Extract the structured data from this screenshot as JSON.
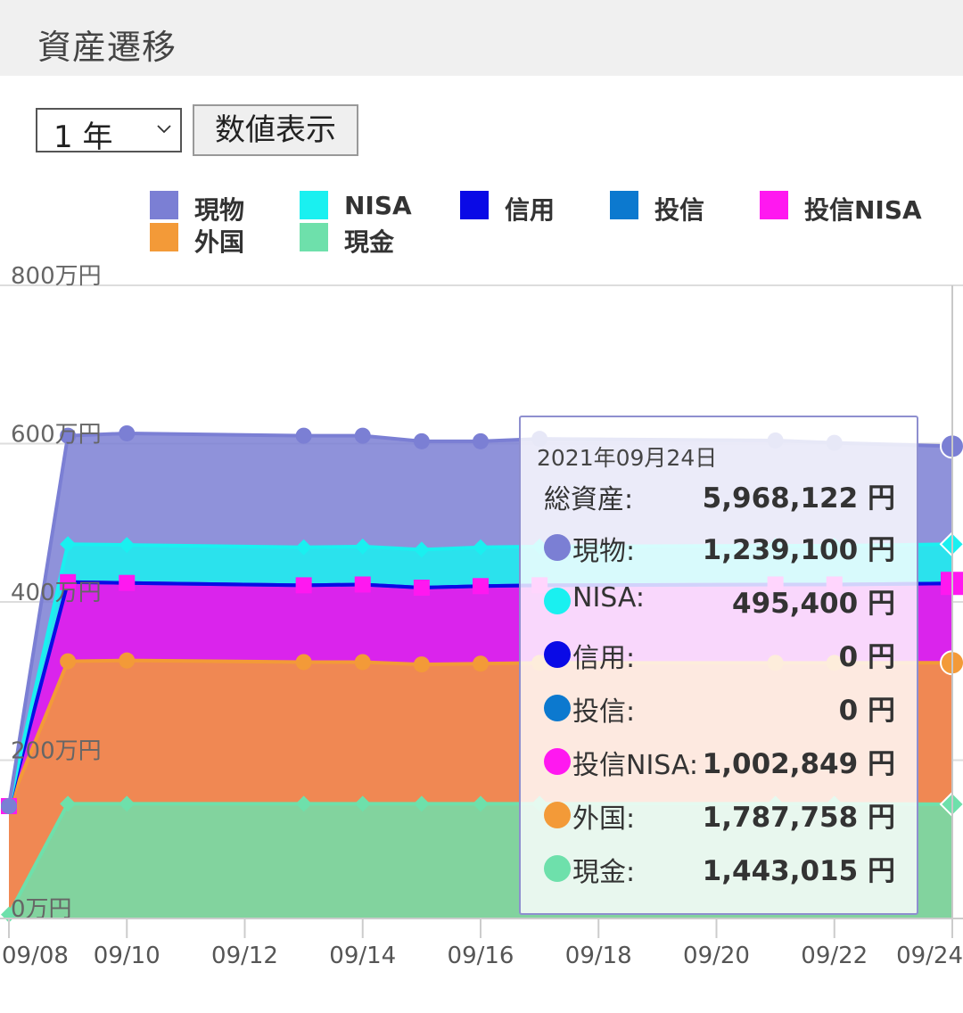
{
  "header": {
    "title": "資産遷移"
  },
  "controls": {
    "period_value": "1 年",
    "toggle_label": "数値表示"
  },
  "legend": [
    {
      "name": "現物",
      "color": "#7b7fd4"
    },
    {
      "name": "NISA",
      "color": "#1af0f0"
    },
    {
      "name": "信用",
      "color": "#0a0ae6"
    },
    {
      "name": "投信",
      "color": "#0c79cf"
    },
    {
      "name": "投信NISA",
      "color": "#ff18f0"
    },
    {
      "name": "外国",
      "color": "#f39a38"
    },
    {
      "name": "現金",
      "color": "#6ee0ab"
    }
  ],
  "tooltip": {
    "date": "2021年09月24日",
    "total_label": "総資産:",
    "total_value": "5,968,122 円",
    "rows": [
      {
        "label": "現物:",
        "value": "1,239,100 円",
        "color": "#7b7fd4"
      },
      {
        "label": "NISA:",
        "value": "495,400 円",
        "color": "#1af0f0"
      },
      {
        "label": "信用:",
        "value": "0 円",
        "color": "#0a0ae6"
      },
      {
        "label": "投信:",
        "value": "0 円",
        "color": "#0c79cf"
      },
      {
        "label": "投信NISA:",
        "value": "1,002,849 円",
        "color": "#ff18f0"
      },
      {
        "label": "外国:",
        "value": "1,787,758 円",
        "color": "#f39a38"
      },
      {
        "label": "現金:",
        "value": "1,443,015 円",
        "color": "#6ee0ab"
      }
    ]
  },
  "chart_data": {
    "type": "area",
    "stacked": true,
    "x": [
      "09/08",
      "09/09",
      "09/10",
      "09/13",
      "09/14",
      "09/15",
      "09/16",
      "09/17",
      "09/21",
      "09/22",
      "09/24"
    ],
    "x_ticks": [
      "09/08",
      "09/10",
      "09/12",
      "09/14",
      "09/16",
      "09/18",
      "09/20",
      "09/22",
      "09/24"
    ],
    "y_ticks": [
      "0万円",
      "200万円",
      "400万円",
      "600万円",
      "800万円"
    ],
    "ylim": [
      0,
      800
    ],
    "y_unit": "万円",
    "grid": true,
    "legend_position": "top",
    "series": [
      {
        "name": "現金",
        "color": "#6ee0ab",
        "marker": "diamond",
        "values": [
          5,
          145,
          145,
          145,
          145,
          145,
          145,
          145,
          145,
          145,
          144.3
        ]
      },
      {
        "name": "外国",
        "color": "#f39a38",
        "marker": "circle",
        "values": [
          137,
          180,
          181,
          179,
          179,
          176,
          177,
          178,
          178,
          178,
          178.8
        ]
      },
      {
        "name": "投信NISA",
        "color": "#ff18f0",
        "marker": "square",
        "values": [
          0,
          100,
          98,
          97,
          98,
          97,
          98,
          98,
          99,
          99,
          100.3
        ]
      },
      {
        "name": "投信",
        "color": "#0c79cf",
        "marker": "none",
        "values": [
          0,
          0,
          0,
          0,
          0,
          0,
          0,
          0,
          0,
          0,
          0
        ]
      },
      {
        "name": "信用",
        "color": "#0a0ae6",
        "marker": "none",
        "values": [
          0,
          0,
          0,
          0,
          0,
          0,
          0,
          0,
          0,
          0,
          0
        ]
      },
      {
        "name": "NISA",
        "color": "#1af0f0",
        "marker": "diamond",
        "values": [
          0,
          48,
          48,
          48,
          48,
          48,
          49,
          49,
          49,
          49,
          49.5
        ]
      },
      {
        "name": "現物",
        "color": "#7b7fd4",
        "marker": "circle",
        "values": [
          0,
          137,
          141,
          141,
          140,
          137,
          134,
          136,
          133,
          130,
          123.9
        ]
      }
    ],
    "highlight_x": "09/24"
  }
}
